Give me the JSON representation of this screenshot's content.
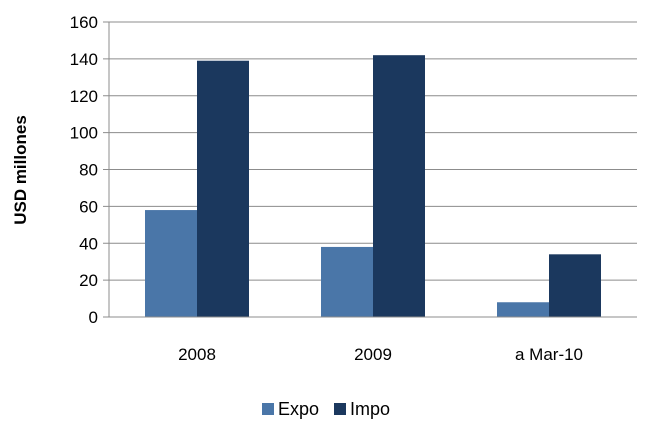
{
  "chart_data": {
    "type": "bar",
    "title": "",
    "xlabel": "",
    "ylabel": "USD millones",
    "categories": [
      "2008",
      "2009",
      "a Mar-10"
    ],
    "series": [
      {
        "name": "Expo",
        "color": "#4a76a8",
        "values": [
          58,
          38,
          8
        ]
      },
      {
        "name": "Impo",
        "color": "#1b385e",
        "values": [
          139,
          142,
          34
        ]
      }
    ],
    "ylim": [
      0,
      160
    ],
    "yticks": [
      0,
      20,
      40,
      60,
      80,
      100,
      120,
      140,
      160
    ],
    "grid": true,
    "legend_position": "bottom"
  }
}
